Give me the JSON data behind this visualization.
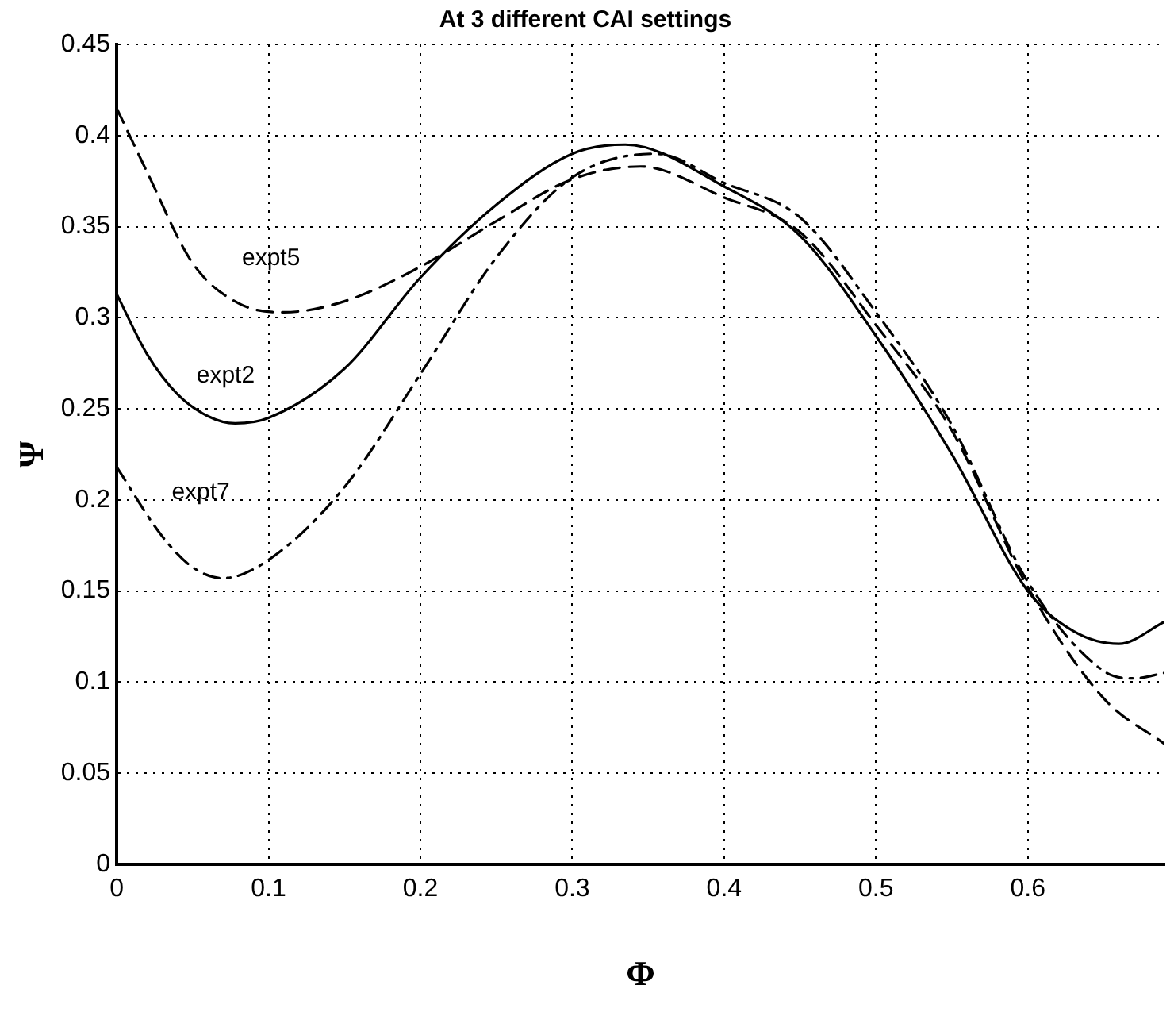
{
  "chart_data": {
    "type": "line",
    "title": "At 3 different CAI settings",
    "xlabel": "Φ",
    "ylabel": "Ψ",
    "xlim": [
      0,
      0.69
    ],
    "xticks": [
      0,
      0.1,
      0.2,
      0.3,
      0.4,
      0.5,
      0.6
    ],
    "ylim": [
      0,
      0.45
    ],
    "yticks": [
      0,
      0.05,
      0.1,
      0.15,
      0.2,
      0.25,
      0.3,
      0.35,
      0.4,
      0.45
    ],
    "grid": true,
    "legend": false,
    "marker": "none",
    "series": [
      {
        "name": "expt2",
        "color": "#000000",
        "line_style": "solid",
        "x": [
          0,
          0.02,
          0.04,
          0.06,
          0.078,
          0.1,
          0.15,
          0.2,
          0.25,
          0.3,
          0.335,
          0.4,
          0.45,
          0.5,
          0.55,
          0.6,
          0.63,
          0.66,
          0.69
        ],
        "values": [
          0.313,
          0.28,
          0.258,
          0.246,
          0.242,
          0.245,
          0.272,
          0.322,
          0.362,
          0.39,
          0.395,
          0.372,
          0.345,
          0.29,
          0.225,
          0.15,
          0.128,
          0.121,
          0.133
        ]
      },
      {
        "name": "expt5",
        "color": "#000000",
        "line_style": "dashed",
        "x": [
          0,
          0.02,
          0.05,
          0.08,
          0.11,
          0.15,
          0.2,
          0.25,
          0.3,
          0.345,
          0.4,
          0.45,
          0.5,
          0.55,
          0.6,
          0.65,
          0.69
        ],
        "values": [
          0.415,
          0.38,
          0.33,
          0.308,
          0.303,
          0.309,
          0.328,
          0.353,
          0.376,
          0.383,
          0.366,
          0.347,
          0.296,
          0.238,
          0.152,
          0.091,
          0.066
        ]
      },
      {
        "name": "expt7",
        "color": "#000000",
        "line_style": "dashdot",
        "x": [
          0,
          0.03,
          0.05,
          0.07,
          0.1,
          0.15,
          0.2,
          0.25,
          0.3,
          0.355,
          0.4,
          0.45,
          0.5,
          0.55,
          0.6,
          0.65,
          0.67,
          0.69
        ],
        "values": [
          0.218,
          0.18,
          0.163,
          0.157,
          0.167,
          0.207,
          0.269,
          0.333,
          0.377,
          0.39,
          0.374,
          0.355,
          0.303,
          0.241,
          0.155,
          0.106,
          0.102,
          0.105
        ]
      }
    ]
  }
}
